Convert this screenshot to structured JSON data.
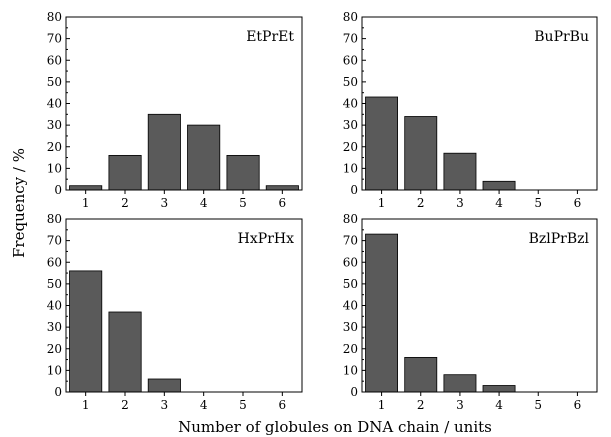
{
  "figure": {
    "ylabel": "Frequency / %",
    "xlabel": "Number of globules on DNA chain / units"
  },
  "colors": {
    "bar_fill": "#5a5a5a",
    "bar_stroke": "#000000",
    "axis": "#000000",
    "background": "#ffffff"
  },
  "chart_data": [
    {
      "type": "bar",
      "label": "EtPrEt",
      "categories": [
        "1",
        "2",
        "3",
        "4",
        "5",
        "6"
      ],
      "values": [
        2,
        16,
        35,
        30,
        16,
        2
      ],
      "ylim": [
        0,
        80
      ],
      "yticks": [
        0,
        10,
        20,
        30,
        40,
        50,
        60,
        70,
        80
      ]
    },
    {
      "type": "bar",
      "label": "BuPrBu",
      "categories": [
        "1",
        "2",
        "3",
        "4",
        "5",
        "6"
      ],
      "values": [
        43,
        34,
        17,
        4,
        0,
        0
      ],
      "ylim": [
        0,
        80
      ],
      "yticks": [
        0,
        10,
        20,
        30,
        40,
        50,
        60,
        70,
        80
      ]
    },
    {
      "type": "bar",
      "label": "HxPrHx",
      "categories": [
        "1",
        "2",
        "3",
        "4",
        "5",
        "6"
      ],
      "values": [
        56,
        37,
        6,
        0,
        0,
        0
      ],
      "ylim": [
        0,
        80
      ],
      "yticks": [
        0,
        10,
        20,
        30,
        40,
        50,
        60,
        70,
        80
      ]
    },
    {
      "type": "bar",
      "label": "BzlPrBzl",
      "categories": [
        "1",
        "2",
        "3",
        "4",
        "5",
        "6"
      ],
      "values": [
        73,
        16,
        8,
        3,
        0,
        0
      ],
      "ylim": [
        0,
        80
      ],
      "yticks": [
        0,
        10,
        20,
        30,
        40,
        50,
        60,
        70,
        80
      ]
    }
  ]
}
